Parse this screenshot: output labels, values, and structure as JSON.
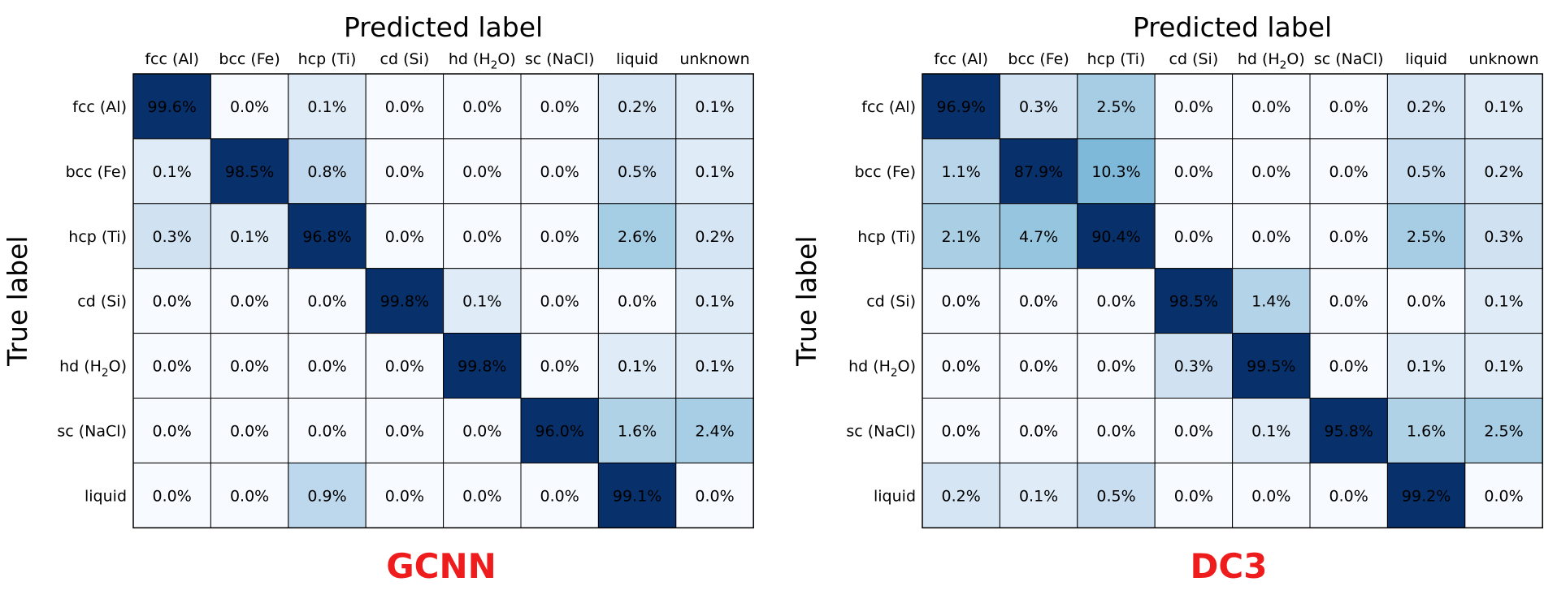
{
  "chart_data": [
    {
      "type": "heatmap",
      "caption": "GCNN",
      "xlabel": "Predicted label",
      "ylabel": "True label",
      "x_categories": [
        "fcc (Al)",
        "bcc (Fe)",
        "hcp (Ti)",
        "cd (Si)",
        "hd (H₂O)",
        "sc (NaCl)",
        "liquid",
        "unknown"
      ],
      "y_categories": [
        "fcc (Al)",
        "bcc (Fe)",
        "hcp (Ti)",
        "cd (Si)",
        "hd (H₂O)",
        "sc (NaCl)",
        "liquid"
      ],
      "values": [
        [
          99.6,
          0.0,
          0.1,
          0.0,
          0.0,
          0.0,
          0.2,
          0.1
        ],
        [
          0.1,
          98.5,
          0.8,
          0.0,
          0.0,
          0.0,
          0.5,
          0.1
        ],
        [
          0.3,
          0.1,
          96.8,
          0.0,
          0.0,
          0.0,
          2.6,
          0.2
        ],
        [
          0.0,
          0.0,
          0.0,
          99.8,
          0.1,
          0.0,
          0.0,
          0.1
        ],
        [
          0.0,
          0.0,
          0.0,
          0.0,
          99.8,
          0.0,
          0.1,
          0.1
        ],
        [
          0.0,
          0.0,
          0.0,
          0.0,
          0.0,
          96.0,
          1.6,
          2.4
        ],
        [
          0.0,
          0.0,
          0.9,
          0.0,
          0.0,
          0.0,
          99.1,
          0.0
        ]
      ],
      "value_format": "percent_1dp",
      "colormap": "Blues",
      "grid": true
    },
    {
      "type": "heatmap",
      "caption": "DC3",
      "xlabel": "Predicted label",
      "ylabel": "True label",
      "x_categories": [
        "fcc (Al)",
        "bcc (Fe)",
        "hcp (Ti)",
        "cd (Si)",
        "hd (H₂O)",
        "sc (NaCl)",
        "liquid",
        "unknown"
      ],
      "y_categories": [
        "fcc (Al)",
        "bcc (Fe)",
        "hcp (Ti)",
        "cd (Si)",
        "hd (H₂O)",
        "sc (NaCl)",
        "liquid"
      ],
      "values": [
        [
          96.9,
          0.3,
          2.5,
          0.0,
          0.0,
          0.0,
          0.2,
          0.1
        ],
        [
          1.1,
          87.9,
          10.3,
          0.0,
          0.0,
          0.0,
          0.5,
          0.2
        ],
        [
          2.1,
          4.7,
          90.4,
          0.0,
          0.0,
          0.0,
          2.5,
          0.3
        ],
        [
          0.0,
          0.0,
          0.0,
          98.5,
          1.4,
          0.0,
          0.0,
          0.1
        ],
        [
          0.0,
          0.0,
          0.0,
          0.3,
          99.5,
          0.0,
          0.1,
          0.1
        ],
        [
          0.0,
          0.0,
          0.0,
          0.0,
          0.1,
          95.8,
          1.6,
          2.5
        ],
        [
          0.2,
          0.1,
          0.5,
          0.0,
          0.0,
          0.0,
          99.2,
          0.0
        ]
      ],
      "value_format": "percent_1dp",
      "colormap": "Blues",
      "grid": true
    }
  ],
  "colors": {
    "caption": "#ee1c1c",
    "cell_border": "#000000",
    "text": "#000000"
  }
}
